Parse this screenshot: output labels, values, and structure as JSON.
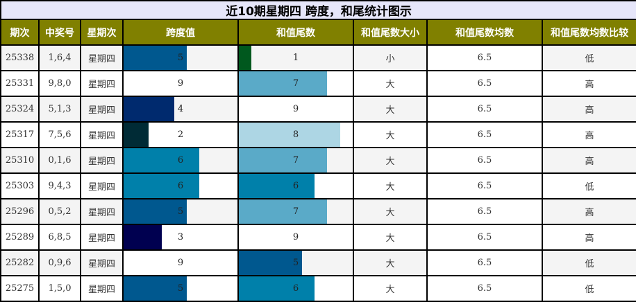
{
  "title": "近10期星期四 跨度，和尾统计图示",
  "colors": {
    "title_bg": "#e6e6fa",
    "header_bg": "#808000",
    "header_text": "#ffffff",
    "row_gray": "#f4f4f4",
    "row_white": "#ffffff"
  },
  "headers": [
    "期次",
    "中奖号",
    "星期次",
    "跨度值",
    "和值尾数",
    "和值尾数大小",
    "和值尾数均数",
    "和值尾数均数比较"
  ],
  "rows": [
    {
      "period": "25338",
      "numbers": "1,6,4",
      "weekday": "星期四",
      "span": "5",
      "span_color": "#00588f",
      "sum_tail": "1",
      "sum_color": "#00581e",
      "size": "小",
      "avg": "6.5",
      "compare": "低"
    },
    {
      "period": "25331",
      "numbers": "9,8,0",
      "weekday": "星期四",
      "span": "9",
      "span_color": "",
      "sum_tail": "7",
      "sum_color": "#5aaac8",
      "size": "大",
      "avg": "6.5",
      "compare": "高"
    },
    {
      "period": "25324",
      "numbers": "5,1,3",
      "weekday": "星期四",
      "span": "4",
      "span_color": "#002a6e",
      "sum_tail": "9",
      "sum_color": "",
      "size": "大",
      "avg": "6.5",
      "compare": "高"
    },
    {
      "period": "25317",
      "numbers": "7,5,6",
      "weekday": "星期四",
      "span": "2",
      "span_color": "#002b36",
      "sum_tail": "8",
      "sum_color": "#add6e4",
      "size": "大",
      "avg": "6.5",
      "compare": "高"
    },
    {
      "period": "25310",
      "numbers": "0,1,6",
      "weekday": "星期四",
      "span": "6",
      "span_color": "#0080aa",
      "sum_tail": "7",
      "sum_color": "#5aaac8",
      "size": "大",
      "avg": "6.5",
      "compare": "高"
    },
    {
      "period": "25303",
      "numbers": "9,4,3",
      "weekday": "星期四",
      "span": "6",
      "span_color": "#0080aa",
      "sum_tail": "6",
      "sum_color": "#0080aa",
      "size": "大",
      "avg": "6.5",
      "compare": "低"
    },
    {
      "period": "25296",
      "numbers": "0,5,2",
      "weekday": "星期四",
      "span": "5",
      "span_color": "#00588f",
      "sum_tail": "7",
      "sum_color": "#5aaac8",
      "size": "大",
      "avg": "6.5",
      "compare": "高"
    },
    {
      "period": "25289",
      "numbers": "6,8,5",
      "weekday": "星期四",
      "span": "3",
      "span_color": "#000050",
      "sum_tail": "9",
      "sum_color": "",
      "size": "大",
      "avg": "6.5",
      "compare": "高"
    },
    {
      "period": "25282",
      "numbers": "0,9,6",
      "weekday": "星期四",
      "span": "9",
      "span_color": "",
      "sum_tail": "5",
      "sum_color": "#00588f",
      "size": "大",
      "avg": "6.5",
      "compare": "低"
    },
    {
      "period": "25275",
      "numbers": "1,5,0",
      "weekday": "星期四",
      "span": "5",
      "span_color": "#00588f",
      "sum_tail": "6",
      "sum_color": "#0080aa",
      "size": "大",
      "avg": "6.5",
      "compare": "低"
    }
  ]
}
